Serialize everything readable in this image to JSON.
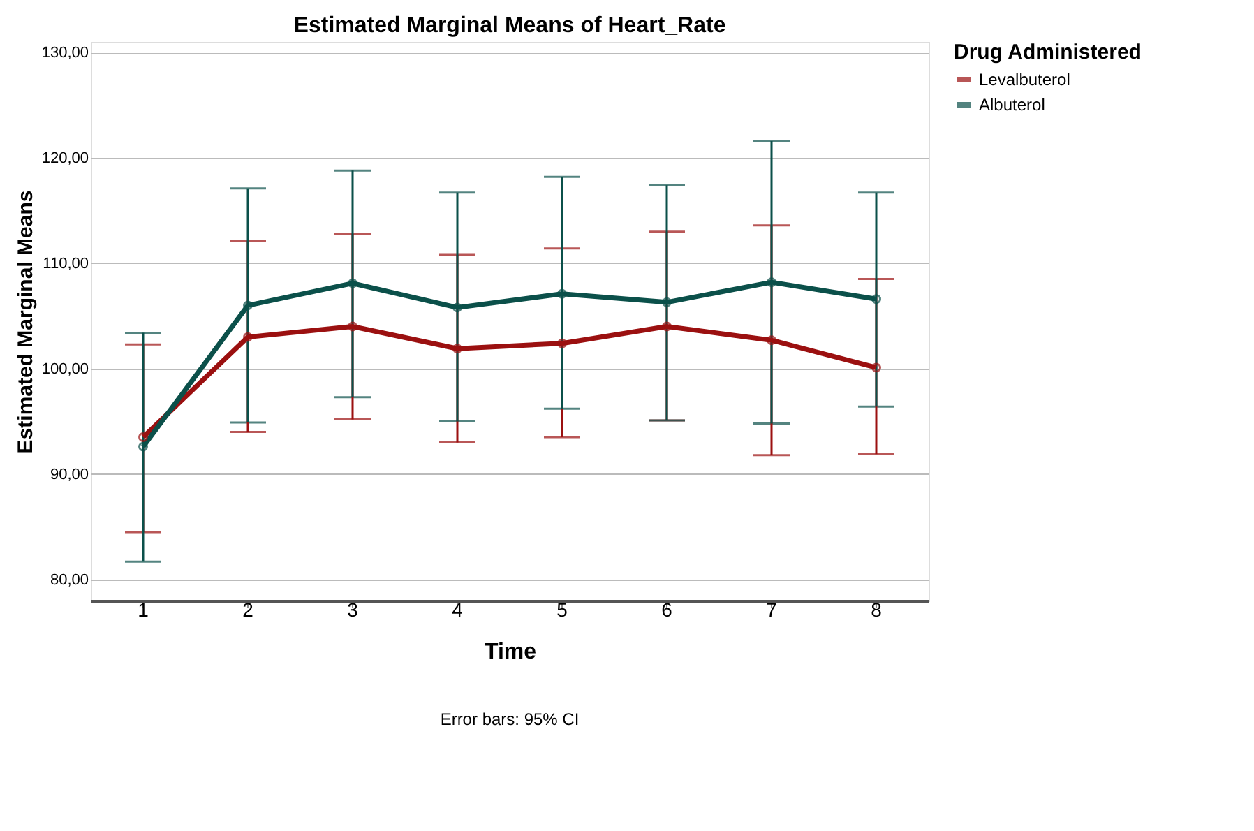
{
  "chart_data": {
    "type": "line",
    "title": "Estimated Marginal Means of Heart_Rate",
    "xlabel": "Time",
    "ylabel": "Estimated Marginal Means",
    "legend_title": "Drug Administered",
    "categories": [
      "1",
      "2",
      "3",
      "4",
      "5",
      "6",
      "7",
      "8"
    ],
    "series": [
      {
        "name": "Levalbuterol",
        "color": "#9b1010",
        "values": [
          93.5,
          103.0,
          104.0,
          101.9,
          102.4,
          104.0,
          102.7,
          100.1
        ],
        "errors": [
          [
            84.5,
            102.3
          ],
          [
            94.0,
            112.1
          ],
          [
            95.2,
            112.8
          ],
          [
            93.0,
            110.8
          ],
          [
            93.5,
            111.4
          ],
          [
            95.1,
            113.0
          ],
          [
            91.8,
            113.6
          ],
          [
            91.9,
            108.5
          ]
        ]
      },
      {
        "name": "Albuterol",
        "color": "#0b504a",
        "values": [
          92.6,
          106.0,
          108.1,
          105.8,
          107.1,
          106.3,
          108.2,
          106.6
        ],
        "errors": [
          [
            81.7,
            103.4
          ],
          [
            94.9,
            117.1
          ],
          [
            97.3,
            118.8
          ],
          [
            95.0,
            116.7
          ],
          [
            96.2,
            118.2
          ],
          [
            95.1,
            117.4
          ],
          [
            94.8,
            121.6
          ],
          [
            96.4,
            116.7
          ]
        ]
      }
    ],
    "ylim": [
      78,
      131
    ],
    "yticks": [
      {
        "value": 80,
        "label": "80,00"
      },
      {
        "value": 90,
        "label": "90,00"
      },
      {
        "value": 100,
        "label": "100,00"
      },
      {
        "value": 110,
        "label": "110,00"
      },
      {
        "value": 120,
        "label": "120,00"
      },
      {
        "value": 130,
        "label": "130,00"
      }
    ],
    "grid": "y",
    "legend": "top right",
    "marker": "circle",
    "line_style": "solid",
    "annotations": [
      "Error bars: 95% CI"
    ]
  }
}
